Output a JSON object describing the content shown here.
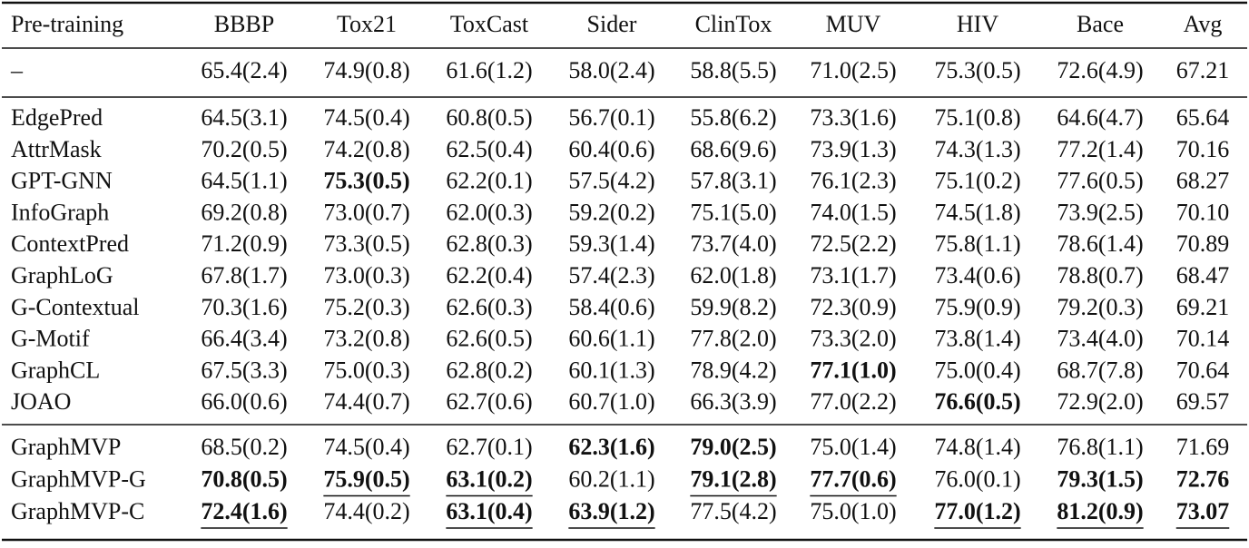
{
  "table": {
    "header": [
      "Pre-training",
      "BBBP",
      "Tox21",
      "ToxCast",
      "Sider",
      "ClinTox",
      "MUV",
      "HIV",
      "Bace",
      "Avg"
    ],
    "groups": [
      {
        "rows": [
          {
            "cells": [
              "–",
              "65.4(2.4)",
              "74.9(0.8)",
              "61.6(1.2)",
              "58.0(2.4)",
              "58.8(5.5)",
              "71.0(2.5)",
              "75.3(0.5)",
              "72.6(4.9)",
              "67.21"
            ]
          }
        ]
      },
      {
        "rows": [
          {
            "cells": [
              "EdgePred",
              "64.5(3.1)",
              "74.5(0.4)",
              "60.8(0.5)",
              "56.7(0.1)",
              "55.8(6.2)",
              "73.3(1.6)",
              "75.1(0.8)",
              "64.6(4.7)",
              "65.64"
            ]
          },
          {
            "cells": [
              "AttrMask",
              "70.2(0.5)",
              "74.2(0.8)",
              "62.5(0.4)",
              "60.4(0.6)",
              "68.6(9.6)",
              "73.9(1.3)",
              "74.3(1.3)",
              "77.2(1.4)",
              "70.16"
            ]
          },
          {
            "cells": [
              "GPT-GNN",
              "64.5(1.1)",
              "75.3(0.5)",
              "62.2(0.1)",
              "57.5(4.2)",
              "57.8(3.1)",
              "76.1(2.3)",
              "75.1(0.2)",
              "77.6(0.5)",
              "68.27"
            ],
            "bold": [
              2
            ]
          },
          {
            "cells": [
              "InfoGraph",
              "69.2(0.8)",
              "73.0(0.7)",
              "62.0(0.3)",
              "59.2(0.2)",
              "75.1(5.0)",
              "74.0(1.5)",
              "74.5(1.8)",
              "73.9(2.5)",
              "70.10"
            ]
          },
          {
            "cells": [
              "ContextPred",
              "71.2(0.9)",
              "73.3(0.5)",
              "62.8(0.3)",
              "59.3(1.4)",
              "73.7(4.0)",
              "72.5(2.2)",
              "75.8(1.1)",
              "78.6(1.4)",
              "70.89"
            ]
          },
          {
            "cells": [
              "GraphLoG",
              "67.8(1.7)",
              "73.0(0.3)",
              "62.2(0.4)",
              "57.4(2.3)",
              "62.0(1.8)",
              "73.1(1.7)",
              "73.4(0.6)",
              "78.8(0.7)",
              "68.47"
            ]
          },
          {
            "cells": [
              "G-Contextual",
              "70.3(1.6)",
              "75.2(0.3)",
              "62.6(0.3)",
              "58.4(0.6)",
              "59.9(8.2)",
              "72.3(0.9)",
              "75.9(0.9)",
              "79.2(0.3)",
              "69.21"
            ]
          },
          {
            "cells": [
              "G-Motif",
              "66.4(3.4)",
              "73.2(0.8)",
              "62.6(0.5)",
              "60.6(1.1)",
              "77.8(2.0)",
              "73.3(2.0)",
              "73.8(1.4)",
              "73.4(4.0)",
              "70.14"
            ]
          },
          {
            "cells": [
              "GraphCL",
              "67.5(3.3)",
              "75.0(0.3)",
              "62.8(0.2)",
              "60.1(1.3)",
              "78.9(4.2)",
              "77.1(1.0)",
              "75.0(0.4)",
              "68.7(7.8)",
              "70.64"
            ],
            "bold": [
              6
            ]
          },
          {
            "cells": [
              "JOAO",
              "66.0(0.6)",
              "74.4(0.7)",
              "62.7(0.6)",
              "60.7(1.0)",
              "66.3(3.9)",
              "77.0(2.2)",
              "76.6(0.5)",
              "72.9(2.0)",
              "69.57"
            ],
            "bold": [
              7
            ]
          }
        ]
      },
      {
        "rows": [
          {
            "cells": [
              "GraphMVP",
              "68.5(0.2)",
              "74.5(0.4)",
              "62.7(0.1)",
              "62.3(1.6)",
              "79.0(2.5)",
              "75.0(1.4)",
              "74.8(1.4)",
              "76.8(1.1)",
              "71.69"
            ],
            "bold": [
              4,
              5
            ]
          },
          {
            "cells": [
              "GraphMVP-G",
              "70.8(0.5)",
              "75.9(0.5)",
              "63.1(0.2)",
              "60.2(1.1)",
              "79.1(2.8)",
              "77.7(0.6)",
              "76.0(0.1)",
              "79.3(1.5)",
              "72.76"
            ],
            "bold": [
              1,
              2,
              3,
              5,
              6,
              8,
              9
            ],
            "underline": [
              2,
              3,
              5,
              6
            ]
          },
          {
            "cells": [
              "GraphMVP-C",
              "72.4(1.6)",
              "74.4(0.2)",
              "63.1(0.4)",
              "63.9(1.2)",
              "77.5(4.2)",
              "75.0(1.0)",
              "77.0(1.2)",
              "81.2(0.9)",
              "73.07"
            ],
            "bold": [
              1,
              3,
              4,
              7,
              8,
              9
            ],
            "underline": [
              1,
              3,
              4,
              7,
              8,
              9
            ]
          }
        ]
      }
    ]
  }
}
